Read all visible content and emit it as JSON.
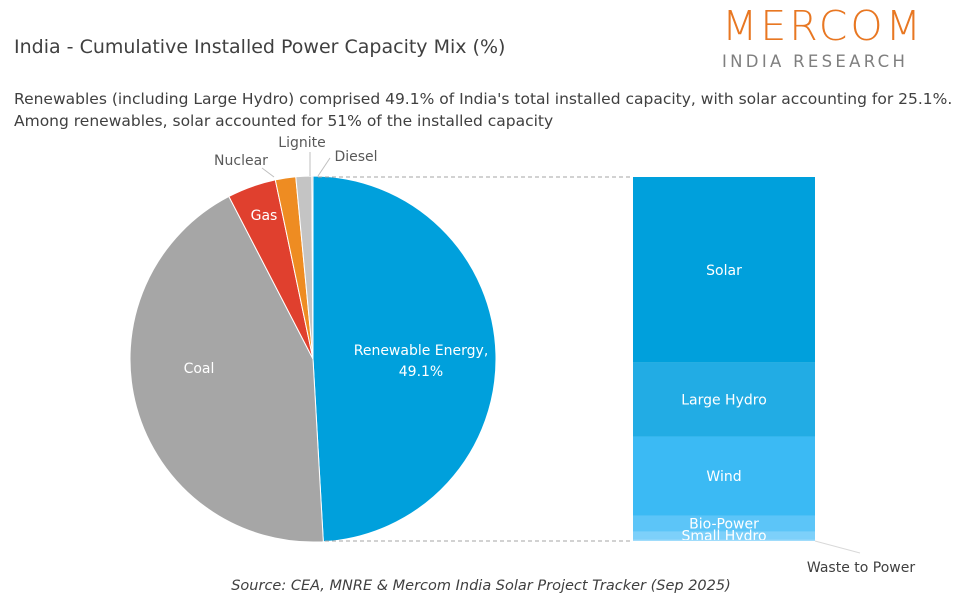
{
  "title": "India - Cumulative Installed Power Capacity Mix (%)",
  "subtitle_lines": [
    "Renewables (including Large Hydro) comprised 49.1% of India's total installed capacity, with solar accounting for 25.1%.",
    "Among renewables, solar accounted for 51% of the installed capacity"
  ],
  "logo": {
    "line1": "MERCOM",
    "line2": "INDIA RESEARCH",
    "color": "#e87722"
  },
  "source": "Source: CEA, MNRE & Mercom India Solar Project Tracker (Sep 2025)",
  "chart_data": [
    {
      "type": "pie",
      "slices": [
        {
          "label": "Renewable Energy",
          "value": 49.1,
          "data_label": "Renewable Energy, 49.1%",
          "color": "#00a0dc"
        },
        {
          "label": "Coal",
          "value": 43.3,
          "color": "#a6a6a6"
        },
        {
          "label": "Gas",
          "value": 4.3,
          "color": "#e0402e"
        },
        {
          "label": "Nuclear",
          "value": 1.8,
          "color": "#ee8c22"
        },
        {
          "label": "Lignite",
          "value": 1.4,
          "color": "#c4c4c4"
        },
        {
          "label": "Diesel",
          "value": 0.1,
          "color": "#808080"
        }
      ]
    },
    {
      "type": "bar",
      "stacked": true,
      "breakdown_of": "Renewable Energy",
      "segments": [
        {
          "label": "Solar",
          "value": 51.0,
          "color": "#00a0dc"
        },
        {
          "label": "Large Hydro",
          "value": 20.3,
          "color": "#22ace4"
        },
        {
          "label": "Wind",
          "value": 21.7,
          "color": "#3bbaf4"
        },
        {
          "label": "Bio-Power",
          "value": 4.4,
          "color": "#5cc5f8"
        },
        {
          "label": "Small Hydro",
          "value": 2.3,
          "color": "#7dd0fa"
        },
        {
          "label": "Waste to Power",
          "value": 0.3,
          "color": "#a0dcfb"
        }
      ]
    }
  ]
}
